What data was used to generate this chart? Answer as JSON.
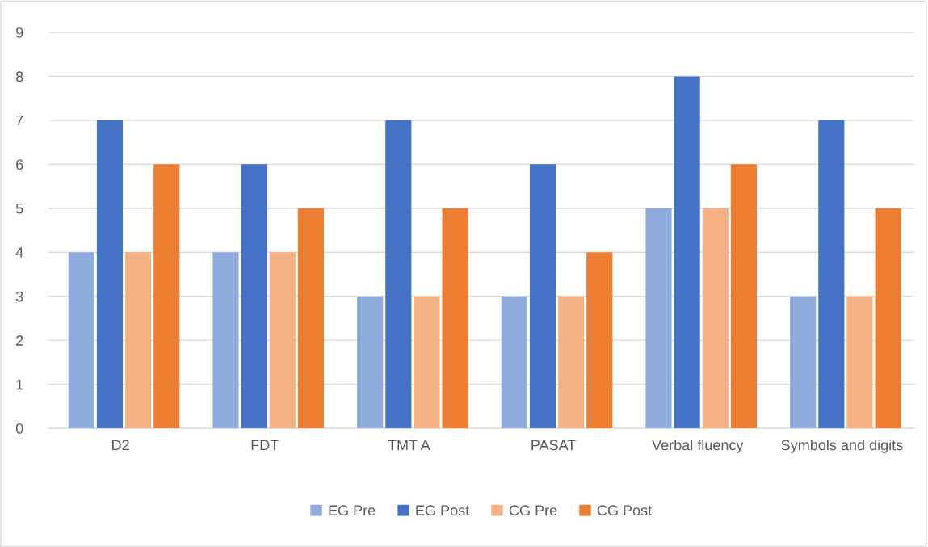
{
  "chart_data": {
    "type": "bar",
    "categories": [
      "D2",
      "FDT",
      "TMT A",
      "PASAT",
      "Verbal fluency",
      "Symbols and digits"
    ],
    "series": [
      {
        "name": "EG Pre",
        "color": "#8faadc",
        "values": [
          4,
          4,
          3,
          3,
          5,
          3
        ]
      },
      {
        "name": "EG Post",
        "color": "#4472c4",
        "values": [
          7,
          6,
          7,
          6,
          8,
          7
        ]
      },
      {
        "name": "CG Pre",
        "color": "#f4b183",
        "values": [
          4,
          4,
          3,
          3,
          5,
          3
        ]
      },
      {
        "name": "CG Post",
        "color": "#ed7d31",
        "values": [
          6,
          5,
          5,
          4,
          6,
          5
        ]
      }
    ],
    "ylim": [
      0,
      9
    ],
    "yticks": [
      0,
      1,
      2,
      3,
      4,
      5,
      6,
      7,
      8,
      9
    ],
    "grid": "y",
    "legend": "bottom"
  }
}
